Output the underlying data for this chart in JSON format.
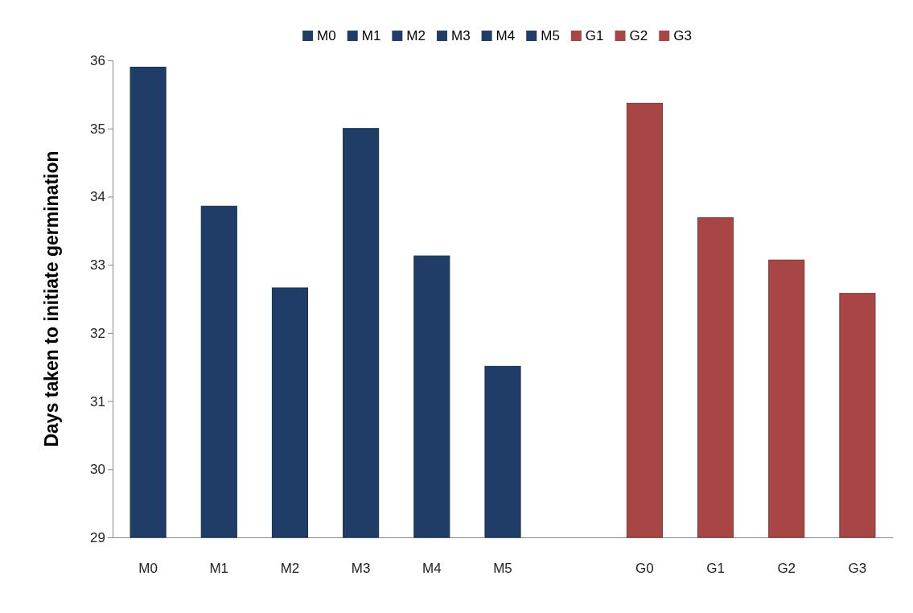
{
  "chart_data": {
    "type": "bar",
    "ylabel": "Days taken to initiate germination",
    "categories": [
      "M0",
      "M1",
      "M2",
      "M3",
      "M4",
      "M5",
      null,
      "G0",
      "G1",
      "G2",
      "G3"
    ],
    "series": [
      {
        "name": "M0",
        "color": "#1f3d66",
        "values": [
          35.9,
          null,
          null,
          null,
          null,
          null,
          null,
          null,
          null,
          null,
          null
        ]
      },
      {
        "name": "M1",
        "color": "#1f3d66",
        "values": [
          null,
          33.86,
          null,
          null,
          null,
          null,
          null,
          null,
          null,
          null,
          null
        ]
      },
      {
        "name": "M2",
        "color": "#1f3d66",
        "values": [
          null,
          null,
          32.66,
          null,
          null,
          null,
          null,
          null,
          null,
          null,
          null
        ]
      },
      {
        "name": "M3",
        "color": "#1f3d66",
        "values": [
          null,
          null,
          null,
          35.0,
          null,
          null,
          null,
          null,
          null,
          null,
          null
        ]
      },
      {
        "name": "M4",
        "color": "#1f3d66",
        "values": [
          null,
          null,
          null,
          null,
          33.13,
          null,
          null,
          null,
          null,
          null,
          null
        ]
      },
      {
        "name": "M5",
        "color": "#1f3d66",
        "values": [
          null,
          null,
          null,
          null,
          null,
          31.51,
          null,
          null,
          null,
          null,
          null
        ]
      },
      {
        "color": "#a84646",
        "values": [
          null,
          null,
          null,
          null,
          null,
          null,
          null,
          35.37,
          null,
          null,
          null
        ]
      },
      {
        "name": "G1",
        "color": "#a84646",
        "values": [
          null,
          null,
          null,
          null,
          null,
          null,
          null,
          null,
          33.69,
          null,
          null
        ]
      },
      {
        "name": "G2",
        "color": "#a84646",
        "values": [
          null,
          null,
          null,
          null,
          null,
          null,
          null,
          null,
          null,
          33.07,
          null
        ]
      },
      {
        "name": "G3",
        "color": "#a84646",
        "values": [
          null,
          null,
          null,
          null,
          null,
          null,
          null,
          null,
          null,
          null,
          32.58
        ]
      }
    ],
    "ylim": [
      29,
      36
    ],
    "yticks": [
      29,
      30,
      31,
      32,
      33,
      34,
      35,
      36
    ],
    "grid": false,
    "legend": "top"
  }
}
